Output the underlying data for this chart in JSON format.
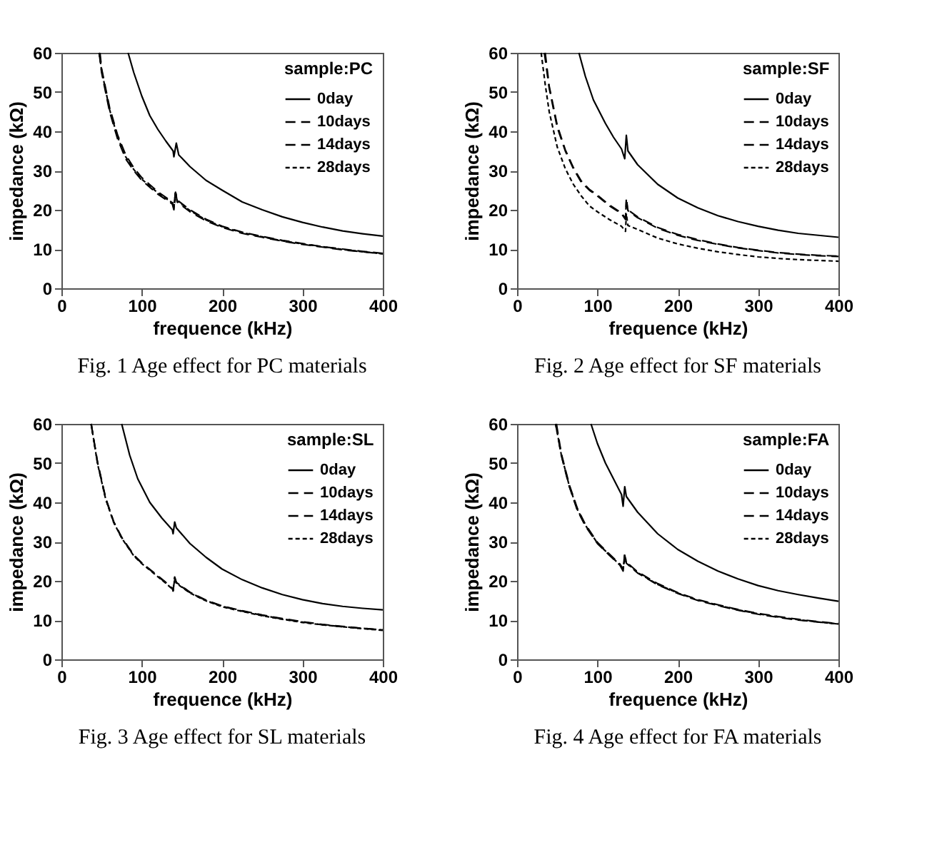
{
  "chart_data": [
    {
      "type": "line",
      "title": "Fig. 1  Age effect for PC materials",
      "xlabel": "frequence (kHz)",
      "ylabel": "impedance (kΩ)",
      "legend_title": "sample:PC",
      "legend": "top right",
      "grid": false,
      "xlim": [
        0,
        400
      ],
      "ylim": [
        0,
        60
      ],
      "xticks": [
        0,
        100,
        200,
        300,
        400
      ],
      "yticks": [
        0,
        10,
        20,
        30,
        40,
        50,
        60
      ],
      "series": [
        {
          "name": "0day",
          "color": "#000000",
          "line_style": "solid",
          "x": [
            83,
            90,
            100,
            110,
            120,
            130,
            139,
            140,
            143,
            146,
            160,
            180,
            200,
            225,
            250,
            275,
            300,
            325,
            350,
            375,
            400
          ],
          "values": [
            60,
            55,
            49,
            44,
            40.5,
            37.5,
            35,
            33.5,
            37,
            34,
            31,
            27.5,
            25,
            22,
            20,
            18.2,
            16.8,
            15.6,
            14.6,
            13.9,
            13.3
          ]
        },
        {
          "name": "10days",
          "color": "#000000",
          "line_style": "dashed",
          "x": [
            47,
            50,
            60,
            70,
            80,
            90,
            100,
            120,
            138,
            140,
            142,
            144,
            160,
            180,
            200,
            225,
            250,
            275,
            300,
            325,
            350,
            375,
            400
          ],
          "values": [
            60,
            55,
            45,
            38,
            33,
            30,
            27.5,
            24,
            21.5,
            20,
            25,
            22,
            19.5,
            17.2,
            15.5,
            14,
            13,
            12,
            11.2,
            10.5,
            9.8,
            9.3,
            8.8
          ]
        },
        {
          "name": "14days",
          "color": "#000000",
          "line_style": "dashed",
          "x": [
            48,
            50,
            60,
            70,
            80,
            90,
            100,
            120,
            138,
            140,
            142,
            144,
            160,
            180,
            200,
            225,
            250,
            275,
            300,
            325,
            350,
            375,
            400
          ],
          "values": [
            60,
            56,
            46,
            39,
            34,
            30.7,
            28.2,
            24.6,
            22,
            20.5,
            24.5,
            22.5,
            20,
            17.6,
            15.8,
            14.3,
            13.2,
            12.2,
            11.4,
            10.6,
            10,
            9.4,
            8.9
          ]
        },
        {
          "name": "28days",
          "color": "#000000",
          "line_style": "dotted",
          "x": [
            47,
            50,
            60,
            70,
            80,
            90,
            100,
            120,
            138,
            140,
            142,
            144,
            160,
            180,
            200,
            225,
            250,
            275,
            300,
            325,
            350,
            375,
            400
          ],
          "values": [
            60,
            55.5,
            45.5,
            38.5,
            33.5,
            30.3,
            27.8,
            24.3,
            21.8,
            20.3,
            24,
            22.3,
            19.8,
            17.4,
            15.7,
            14.2,
            13.1,
            12.1,
            11.3,
            10.6,
            9.9,
            9.3,
            8.8
          ]
        }
      ]
    },
    {
      "type": "line",
      "title": "Fig. 2  Age effect for SF materials",
      "xlabel": "frequence (kHz)",
      "ylabel": "impedance (kΩ)",
      "legend_title": "sample:SF",
      "legend": "top right",
      "grid": false,
      "xlim": [
        0,
        400
      ],
      "ylim": [
        0,
        60
      ],
      "xticks": [
        0,
        100,
        200,
        300,
        400
      ],
      "yticks": [
        0,
        10,
        20,
        30,
        40,
        50,
        60
      ],
      "series": [
        {
          "name": "0day",
          "color": "#000000",
          "line_style": "solid",
          "x": [
            77,
            85,
            95,
            110,
            120,
            130,
            134,
            136,
            138,
            150,
            175,
            200,
            225,
            250,
            275,
            300,
            325,
            350,
            375,
            400
          ],
          "values": [
            60,
            54,
            48,
            42,
            38.5,
            35.5,
            33,
            39,
            35,
            31.5,
            26.5,
            23,
            20.5,
            18.5,
            17,
            15.8,
            14.8,
            14,
            13.5,
            13
          ]
        },
        {
          "name": "10days",
          "color": "#000000",
          "line_style": "dashed",
          "x": [
            34,
            40,
            50,
            60,
            70,
            80,
            90,
            100,
            115,
            130,
            135,
            136,
            138,
            150,
            175,
            200,
            225,
            250,
            275,
            300,
            325,
            350,
            375,
            400
          ],
          "values": [
            60,
            51,
            41,
            35,
            30.5,
            27,
            25,
            23.5,
            21,
            19,
            17.5,
            23,
            19.8,
            18,
            15.3,
            13.5,
            12.2,
            11.2,
            10.3,
            9.6,
            9,
            8.6,
            8.3,
            8.1
          ]
        },
        {
          "name": "14days",
          "color": "#000000",
          "line_style": "dashed",
          "x": [
            35,
            40,
            50,
            60,
            70,
            80,
            90,
            100,
            115,
            130,
            135,
            136,
            138,
            150,
            175,
            200,
            225,
            250,
            275,
            300,
            325,
            350,
            375,
            400
          ],
          "values": [
            60,
            51.5,
            41.5,
            35.3,
            30.8,
            27.3,
            25.2,
            23.7,
            21.2,
            19.2,
            17.8,
            22,
            20,
            18.2,
            15.5,
            13.7,
            12.4,
            11.3,
            10.4,
            9.7,
            9.1,
            8.7,
            8.4,
            8.2
          ]
        },
        {
          "name": "28days",
          "color": "#000000",
          "line_style": "dotted",
          "x": [
            30,
            35,
            40,
            50,
            60,
            70,
            80,
            90,
            100,
            115,
            130,
            135,
            136,
            138,
            150,
            175,
            200,
            225,
            250,
            275,
            300,
            325,
            350,
            375,
            400
          ],
          "values": [
            60,
            52,
            45,
            36,
            30.5,
            26.5,
            23.5,
            21,
            19.5,
            17.5,
            15.8,
            14.5,
            19,
            16,
            15,
            12.8,
            11.3,
            10.2,
            9.3,
            8.6,
            8,
            7.6,
            7.3,
            7.1,
            6.9
          ]
        }
      ]
    },
    {
      "type": "line",
      "title": "Fig. 3  Age effect for SL materials",
      "xlabel": "frequence (kHz)",
      "ylabel": "impedance (kΩ)",
      "legend_title": "sample:SL",
      "legend": "top right",
      "grid": false,
      "xlim": [
        0,
        400
      ],
      "ylim": [
        0,
        60
      ],
      "xticks": [
        0,
        100,
        200,
        300,
        400
      ],
      "yticks": [
        0,
        10,
        20,
        30,
        40,
        50,
        60
      ],
      "series": [
        {
          "name": "0day",
          "color": "#000000",
          "line_style": "solid",
          "x": [
            75,
            85,
            95,
            110,
            125,
            138,
            139,
            141,
            143,
            160,
            180,
            200,
            225,
            250,
            275,
            300,
            325,
            350,
            375,
            400
          ],
          "values": [
            60,
            52,
            46,
            40,
            36,
            33,
            32,
            35,
            33.5,
            29.5,
            26,
            23,
            20.3,
            18.2,
            16.5,
            15.2,
            14.2,
            13.5,
            13,
            12.6
          ]
        },
        {
          "name": "10days",
          "color": "#000000",
          "line_style": "dashed",
          "x": [
            37,
            45,
            55,
            65,
            75,
            90,
            100,
            115,
            130,
            138,
            139,
            141,
            143,
            160,
            180,
            200,
            225,
            250,
            275,
            300,
            325,
            350,
            375,
            400
          ],
          "values": [
            60,
            50,
            41,
            35,
            31,
            26.5,
            24.5,
            22,
            19.5,
            18,
            17.5,
            21,
            19.5,
            17,
            15,
            13.5,
            12.3,
            11.2,
            10.3,
            9.5,
            8.8,
            8.3,
            7.9,
            7.5
          ]
        },
        {
          "name": "14days",
          "color": "#000000",
          "line_style": "dashed",
          "x": [
            37,
            45,
            55,
            65,
            75,
            90,
            100,
            115,
            130,
            138,
            139,
            141,
            143,
            160,
            180,
            200,
            225,
            250,
            275,
            300,
            325,
            350,
            375,
            400
          ],
          "values": [
            60,
            50.2,
            41.2,
            35.1,
            31.1,
            26.6,
            24.6,
            22.1,
            19.6,
            18.1,
            17.6,
            20.8,
            19.6,
            17.1,
            15.1,
            13.6,
            12.4,
            11.3,
            10.4,
            9.6,
            8.9,
            8.4,
            7.9,
            7.5
          ]
        },
        {
          "name": "28days",
          "color": "#000000",
          "line_style": "dotted",
          "x": [
            37,
            45,
            55,
            65,
            75,
            90,
            100,
            115,
            130,
            138,
            139,
            141,
            143,
            160,
            180,
            200,
            225,
            250,
            275,
            300,
            325,
            350,
            375,
            400
          ],
          "values": [
            60,
            49.8,
            40.9,
            34.9,
            30.9,
            26.4,
            24.4,
            21.9,
            19.4,
            17.9,
            17.4,
            20.6,
            19.4,
            16.9,
            14.9,
            13.4,
            12.2,
            11.1,
            10.2,
            9.4,
            8.8,
            8.3,
            7.8,
            7.4
          ]
        }
      ]
    },
    {
      "type": "line",
      "title": "Fig. 4  Age effect for FA materials",
      "xlabel": "frequence (kHz)",
      "ylabel": "impedance (kΩ)",
      "legend_title": "sample:FA",
      "legend": "top right",
      "grid": false,
      "xlim": [
        0,
        400
      ],
      "ylim": [
        0,
        60
      ],
      "xticks": [
        0,
        100,
        200,
        300,
        400
      ],
      "yticks": [
        0,
        10,
        20,
        30,
        40,
        50,
        60
      ],
      "series": [
        {
          "name": "0day",
          "color": "#000000",
          "line_style": "solid",
          "x": [
            92,
            100,
            110,
            120,
            130,
            132,
            134,
            136,
            150,
            175,
            200,
            225,
            250,
            275,
            300,
            325,
            350,
            375,
            400
          ],
          "values": [
            60,
            55,
            50,
            46,
            42,
            39,
            44,
            41.5,
            37.5,
            32,
            28,
            25,
            22.5,
            20.5,
            18.8,
            17.5,
            16.5,
            15.6,
            14.8
          ]
        },
        {
          "name": "10days",
          "color": "#000000",
          "line_style": "dashed",
          "x": [
            48,
            55,
            65,
            75,
            85,
            100,
            115,
            128,
            132,
            134,
            136,
            150,
            175,
            200,
            225,
            250,
            275,
            300,
            325,
            350,
            375,
            400
          ],
          "values": [
            60,
            52,
            44,
            38,
            34,
            29.5,
            26.5,
            24,
            22.5,
            27,
            24.5,
            22,
            19,
            16.8,
            15,
            13.7,
            12.5,
            11.5,
            10.7,
            10,
            9.5,
            9
          ]
        },
        {
          "name": "14days",
          "color": "#000000",
          "line_style": "dashed",
          "x": [
            49,
            55,
            65,
            75,
            85,
            100,
            115,
            128,
            132,
            134,
            136,
            150,
            175,
            200,
            225,
            250,
            275,
            300,
            325,
            350,
            375,
            400
          ],
          "values": [
            60,
            52.5,
            44.5,
            38.5,
            34.4,
            29.8,
            26.8,
            24.3,
            23,
            26.5,
            24.8,
            22.3,
            19.3,
            17,
            15.2,
            13.9,
            12.7,
            11.7,
            10.9,
            10.2,
            9.6,
            9.1
          ]
        },
        {
          "name": "28days",
          "color": "#000000",
          "line_style": "dotted",
          "x": [
            48,
            55,
            65,
            75,
            85,
            100,
            115,
            128,
            132,
            134,
            136,
            150,
            175,
            200,
            225,
            250,
            275,
            300,
            325,
            350,
            375,
            400
          ],
          "values": [
            60,
            52.2,
            44.2,
            38.2,
            34.2,
            29.6,
            26.6,
            24.1,
            22.8,
            26,
            24.6,
            22.1,
            19.1,
            16.9,
            15.1,
            13.8,
            12.6,
            11.6,
            10.8,
            10.1,
            9.5,
            9
          ]
        }
      ]
    }
  ]
}
